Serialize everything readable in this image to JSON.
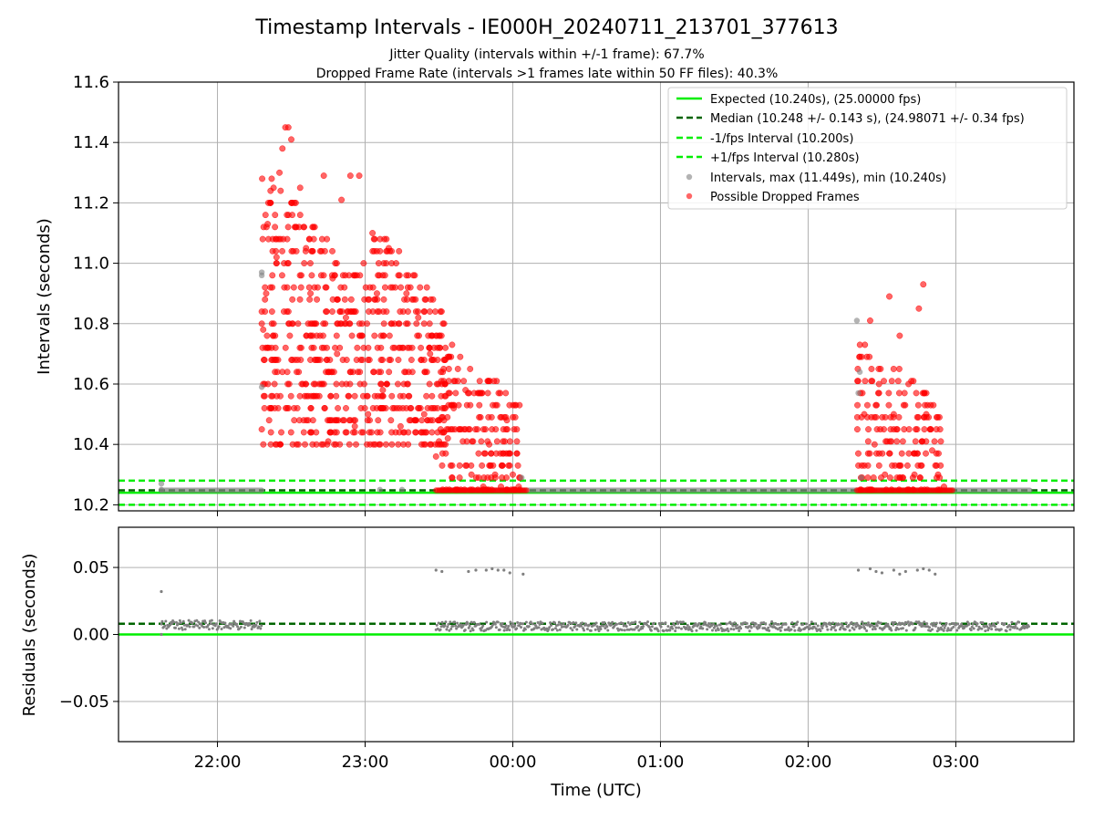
{
  "figure": {
    "title": "Timestamp Intervals - IE000H_20240711_213701_377613",
    "subtitle_1": "Jitter Quality (intervals within +/-1 frame): 67.7%",
    "subtitle_2": "Dropped Frame Rate (intervals >1 frames late within 50 FF files): 40.3%"
  },
  "colors": {
    "expected": "#00ee00",
    "median": "#006400",
    "fps_interval": "#00ee00",
    "intervals": "#808080",
    "dropped": "#ff0000",
    "grid": "#b0b0b0"
  },
  "chart_data": [
    {
      "type": "scatter",
      "panel": "intervals",
      "ylabel": "Intervals (seconds)",
      "xlabel": "",
      "xlim_hours": [
        21.33,
        27.8
      ],
      "ylim": [
        10.18,
        11.6
      ],
      "yticks": [
        10.2,
        10.4,
        10.6,
        10.8,
        11.0,
        11.2,
        11.4,
        11.6
      ],
      "ytick_labels": [
        "10.2",
        "10.4",
        "10.6",
        "10.8",
        "11.0",
        "11.2",
        "11.4",
        "11.6"
      ],
      "grid": true,
      "legend_position": "top-right",
      "legend": [
        {
          "label": "Expected (10.240s), (25.00000 fps)",
          "kind": "solid"
        },
        {
          "label": "Median (10.248 +/- 0.143 s), (24.98071 +/- 0.34 fps)",
          "kind": "dashed-dark"
        },
        {
          "label": "-1/fps Interval (10.200s)",
          "kind": "dashed"
        },
        {
          "label": "+1/fps Interval (10.280s)",
          "kind": "dashed"
        },
        {
          "label": "Intervals, max (11.449s), min (10.240s)",
          "kind": "gray-dot"
        },
        {
          "label": "Possible Dropped Frames",
          "kind": "red-dot"
        }
      ],
      "reference_lines": {
        "expected": 10.24,
        "median": 10.248,
        "minus_one_fps": 10.2,
        "plus_one_fps": 10.28
      },
      "baseline_segments": [
        {
          "x_start": 21.62,
          "x_end": 22.3,
          "y": 10.248
        },
        {
          "x_start": 23.5,
          "x_end": 27.5,
          "y": 10.248
        }
      ],
      "normal_intervals": [
        {
          "x": 21.62,
          "y": 10.27
        },
        {
          "x": 21.62,
          "y": 10.25
        },
        {
          "x": 22.3,
          "y": 10.59
        },
        {
          "x": 22.3,
          "y": 10.97
        },
        {
          "x": 22.3,
          "y": 10.96
        },
        {
          "x": 23.1,
          "y": 10.25
        },
        {
          "x": 23.25,
          "y": 10.25
        },
        {
          "x": 24.06,
          "y": 10.29
        },
        {
          "x": 26.33,
          "y": 10.81
        },
        {
          "x": 26.34,
          "y": 10.57
        },
        {
          "x": 26.35,
          "y": 10.64
        },
        {
          "x": 26.36,
          "y": 10.29
        }
      ],
      "dropped_frames": [
        {
          "x": 22.3,
          "y": 10.45
        },
        {
          "x": 22.32,
          "y": 10.6
        },
        {
          "x": 22.31,
          "y": 10.78
        },
        {
          "x": 22.33,
          "y": 10.9
        },
        {
          "x": 22.34,
          "y": 11.13
        },
        {
          "x": 22.36,
          "y": 11.2
        },
        {
          "x": 22.38,
          "y": 11.25
        },
        {
          "x": 22.4,
          "y": 11.02
        },
        {
          "x": 22.42,
          "y": 11.3
        },
        {
          "x": 22.44,
          "y": 11.38
        },
        {
          "x": 22.46,
          "y": 11.45
        },
        {
          "x": 22.48,
          "y": 11.45
        },
        {
          "x": 22.5,
          "y": 11.41
        },
        {
          "x": 22.53,
          "y": 11.2
        },
        {
          "x": 22.56,
          "y": 11.25
        },
        {
          "x": 22.6,
          "y": 11.05
        },
        {
          "x": 22.63,
          "y": 10.9
        },
        {
          "x": 22.66,
          "y": 10.8
        },
        {
          "x": 22.69,
          "y": 10.6
        },
        {
          "x": 22.72,
          "y": 11.29
        },
        {
          "x": 22.75,
          "y": 10.41
        },
        {
          "x": 22.78,
          "y": 10.95
        },
        {
          "x": 22.81,
          "y": 10.7
        },
        {
          "x": 22.84,
          "y": 11.21
        },
        {
          "x": 22.87,
          "y": 10.82
        },
        {
          "x": 22.9,
          "y": 11.29
        },
        {
          "x": 22.93,
          "y": 10.46
        },
        {
          "x": 22.96,
          "y": 11.29
        },
        {
          "x": 22.99,
          "y": 11.0
        },
        {
          "x": 23.02,
          "y": 10.5
        },
        {
          "x": 23.05,
          "y": 11.1
        },
        {
          "x": 23.08,
          "y": 10.9
        },
        {
          "x": 23.12,
          "y": 10.58
        },
        {
          "x": 23.16,
          "y": 11.05
        },
        {
          "x": 23.2,
          "y": 10.72
        },
        {
          "x": 23.24,
          "y": 10.46
        },
        {
          "x": 23.28,
          "y": 10.9
        },
        {
          "x": 23.32,
          "y": 10.64
        },
        {
          "x": 23.36,
          "y": 10.82
        },
        {
          "x": 23.4,
          "y": 10.5
        },
        {
          "x": 23.44,
          "y": 10.7
        },
        {
          "x": 23.48,
          "y": 10.36
        },
        {
          "x": 23.52,
          "y": 10.6
        },
        {
          "x": 23.56,
          "y": 10.42
        },
        {
          "x": 23.6,
          "y": 10.52
        },
        {
          "x": 23.64,
          "y": 10.33
        },
        {
          "x": 23.68,
          "y": 10.58
        },
        {
          "x": 23.72,
          "y": 10.3
        },
        {
          "x": 23.76,
          "y": 10.45
        },
        {
          "x": 23.8,
          "y": 10.26
        },
        {
          "x": 23.84,
          "y": 10.4
        },
        {
          "x": 23.88,
          "y": 10.3
        },
        {
          "x": 23.92,
          "y": 10.26
        },
        {
          "x": 23.96,
          "y": 10.48
        },
        {
          "x": 24.0,
          "y": 10.3
        },
        {
          "x": 24.04,
          "y": 10.26
        },
        {
          "x": 26.35,
          "y": 10.69
        },
        {
          "x": 26.38,
          "y": 10.5
        },
        {
          "x": 26.42,
          "y": 10.81
        },
        {
          "x": 26.45,
          "y": 10.4
        },
        {
          "x": 26.48,
          "y": 10.6
        },
        {
          "x": 26.52,
          "y": 10.3
        },
        {
          "x": 26.55,
          "y": 10.89
        },
        {
          "x": 26.58,
          "y": 10.5
        },
        {
          "x": 26.62,
          "y": 10.76
        },
        {
          "x": 26.65,
          "y": 10.45
        },
        {
          "x": 26.68,
          "y": 10.6
        },
        {
          "x": 26.72,
          "y": 10.3
        },
        {
          "x": 26.75,
          "y": 10.85
        },
        {
          "x": 26.78,
          "y": 10.93
        },
        {
          "x": 26.8,
          "y": 10.5
        },
        {
          "x": 26.84,
          "y": 10.38
        },
        {
          "x": 26.88,
          "y": 10.3
        },
        {
          "x": 26.92,
          "y": 10.26
        }
      ],
      "dropped_baseline": [
        {
          "x_start": 23.48,
          "x_end": 24.1,
          "y": 10.248
        },
        {
          "x_start": 26.33,
          "x_end": 26.98,
          "y": 10.248
        }
      ]
    },
    {
      "type": "scatter",
      "panel": "residuals",
      "ylabel": "Residuals (seconds)",
      "xlabel": "Time (UTC)",
      "xlim_hours": [
        21.33,
        27.8
      ],
      "ylim": [
        -0.08,
        0.08
      ],
      "yticks": [
        0.05,
        0.0,
        -0.05
      ],
      "ytick_labels": [
        "0.05",
        "0.00",
        "−0.05"
      ],
      "xticks_hours": [
        22,
        23,
        24,
        25,
        26,
        27
      ],
      "xtick_labels": [
        "22:00",
        "23:00",
        "00:00",
        "01:00",
        "02:00",
        "03:00"
      ],
      "grid": true,
      "reference_lines": {
        "zero": 0.0,
        "median": 0.008
      },
      "residual_segments": [
        {
          "x_start": 21.62,
          "x_end": 22.3,
          "y": 0.007
        },
        {
          "x_start": 23.48,
          "x_end": 27.5,
          "y": 0.006
        }
      ],
      "outliers": [
        {
          "x": 21.62,
          "y": 0.032
        },
        {
          "x": 21.62,
          "y": 0.0
        },
        {
          "x": 23.48,
          "y": 0.048
        },
        {
          "x": 23.52,
          "y": 0.047
        },
        {
          "x": 23.7,
          "y": 0.047
        },
        {
          "x": 23.75,
          "y": 0.048
        },
        {
          "x": 23.82,
          "y": 0.048
        },
        {
          "x": 23.86,
          "y": 0.049
        },
        {
          "x": 23.9,
          "y": 0.048
        },
        {
          "x": 23.94,
          "y": 0.048
        },
        {
          "x": 23.98,
          "y": 0.046
        },
        {
          "x": 24.07,
          "y": 0.045
        },
        {
          "x": 26.34,
          "y": 0.048
        },
        {
          "x": 26.42,
          "y": 0.049
        },
        {
          "x": 26.46,
          "y": 0.047
        },
        {
          "x": 26.5,
          "y": 0.046
        },
        {
          "x": 26.58,
          "y": 0.048
        },
        {
          "x": 26.62,
          "y": 0.045
        },
        {
          "x": 26.66,
          "y": 0.047
        },
        {
          "x": 26.74,
          "y": 0.048
        },
        {
          "x": 26.78,
          "y": 0.049
        },
        {
          "x": 26.82,
          "y": 0.048
        },
        {
          "x": 26.86,
          "y": 0.045
        }
      ]
    }
  ]
}
